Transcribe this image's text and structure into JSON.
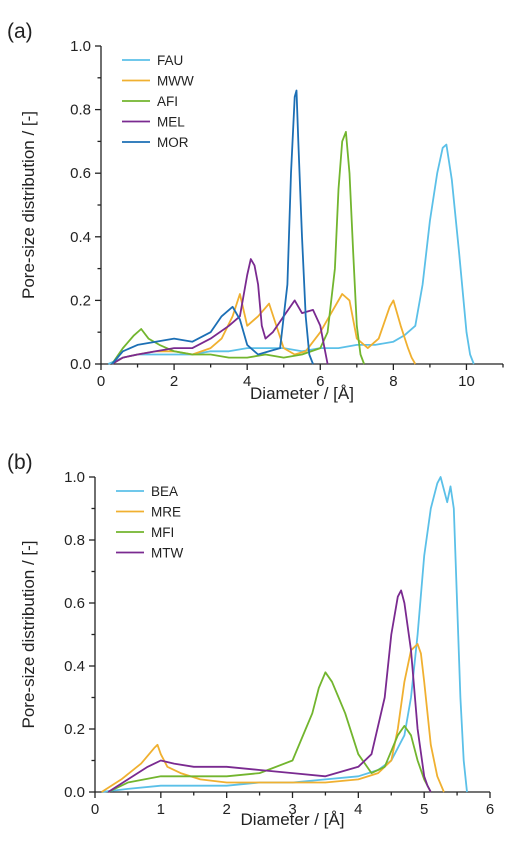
{
  "chart_data": [
    {
      "type": "line",
      "panel_label": "(a)",
      "xlabel": "Diameter / [Å]",
      "ylabel": "Pore-size distribution / [-]",
      "xlim": [
        0,
        11
      ],
      "ylim": [
        0,
        1.0
      ],
      "xticks": [
        0,
        2,
        4,
        6,
        8,
        10
      ],
      "yticks": [
        "0.0",
        "0.2",
        "0.4",
        "0.6",
        "0.8",
        "1.0"
      ],
      "legend_position": "top-left",
      "series": [
        {
          "name": "FAU",
          "color": "#5bc0e8",
          "x": [
            0.2,
            0.6,
            1.0,
            1.5,
            2.0,
            2.5,
            3.0,
            3.5,
            4.0,
            4.5,
            5.0,
            5.5,
            6.0,
            6.5,
            7.0,
            7.5,
            8.0,
            8.3,
            8.6,
            8.8,
            9.0,
            9.2,
            9.35,
            9.45,
            9.6,
            9.8,
            10.0,
            10.1,
            10.2
          ],
          "y": [
            0.0,
            0.02,
            0.03,
            0.03,
            0.03,
            0.03,
            0.04,
            0.04,
            0.05,
            0.05,
            0.05,
            0.04,
            0.05,
            0.05,
            0.06,
            0.06,
            0.07,
            0.09,
            0.12,
            0.25,
            0.45,
            0.6,
            0.68,
            0.69,
            0.58,
            0.35,
            0.1,
            0.03,
            0.0
          ]
        },
        {
          "name": "MWW",
          "color": "#f0b030",
          "x": [
            0.3,
            0.6,
            1.0,
            1.5,
            2.0,
            2.5,
            3.0,
            3.3,
            3.6,
            3.8,
            4.0,
            4.3,
            4.6,
            5.0,
            5.3,
            5.6,
            6.0,
            6.3,
            6.6,
            6.8,
            7.0,
            7.3,
            7.6,
            7.9,
            8.0,
            8.2,
            8.4,
            8.5,
            8.6
          ],
          "y": [
            0.0,
            0.02,
            0.03,
            0.04,
            0.04,
            0.03,
            0.05,
            0.08,
            0.15,
            0.22,
            0.12,
            0.15,
            0.19,
            0.05,
            0.03,
            0.04,
            0.1,
            0.16,
            0.22,
            0.2,
            0.08,
            0.05,
            0.08,
            0.18,
            0.2,
            0.12,
            0.05,
            0.02,
            0.0
          ]
        },
        {
          "name": "AFI",
          "color": "#72b52e",
          "x": [
            0.3,
            0.6,
            0.9,
            1.1,
            1.3,
            1.6,
            2.0,
            2.5,
            3.0,
            3.5,
            4.0,
            4.5,
            5.0,
            5.5,
            6.0,
            6.2,
            6.4,
            6.5,
            6.6,
            6.7,
            6.8,
            6.9,
            7.0,
            7.1,
            7.2
          ],
          "y": [
            0.0,
            0.05,
            0.09,
            0.11,
            0.08,
            0.06,
            0.04,
            0.03,
            0.03,
            0.02,
            0.02,
            0.03,
            0.02,
            0.03,
            0.05,
            0.1,
            0.3,
            0.55,
            0.7,
            0.73,
            0.6,
            0.35,
            0.12,
            0.03,
            0.0
          ]
        },
        {
          "name": "MEL",
          "color": "#7a2a90",
          "x": [
            0.3,
            0.6,
            1.0,
            1.5,
            2.0,
            2.5,
            3.0,
            3.5,
            3.8,
            4.0,
            4.1,
            4.2,
            4.3,
            4.4,
            4.5,
            4.7,
            5.0,
            5.3,
            5.5,
            5.8,
            6.0,
            6.1,
            6.2
          ],
          "y": [
            0.0,
            0.02,
            0.03,
            0.04,
            0.05,
            0.05,
            0.08,
            0.12,
            0.15,
            0.28,
            0.33,
            0.31,
            0.25,
            0.12,
            0.08,
            0.1,
            0.15,
            0.2,
            0.16,
            0.17,
            0.12,
            0.06,
            0.0
          ]
        },
        {
          "name": "MOR",
          "color": "#1c6fb5",
          "x": [
            0.3,
            0.6,
            1.0,
            1.5,
            2.0,
            2.5,
            3.0,
            3.3,
            3.6,
            3.8,
            4.0,
            4.3,
            4.6,
            4.9,
            5.1,
            5.2,
            5.3,
            5.35,
            5.4,
            5.5,
            5.6,
            5.7,
            5.8
          ],
          "y": [
            0.0,
            0.04,
            0.06,
            0.07,
            0.08,
            0.07,
            0.1,
            0.15,
            0.18,
            0.14,
            0.06,
            0.03,
            0.04,
            0.05,
            0.25,
            0.6,
            0.84,
            0.86,
            0.7,
            0.4,
            0.15,
            0.03,
            0.0
          ]
        }
      ]
    },
    {
      "type": "line",
      "panel_label": "(b)",
      "xlabel": "Diameter / [Å]",
      "ylabel": "Pore-size distribution / [-]",
      "xlim": [
        0,
        6
      ],
      "ylim": [
        0,
        1.0
      ],
      "xticks": [
        0,
        1,
        2,
        3,
        4,
        5,
        6
      ],
      "yticks": [
        "0.0",
        "0.2",
        "0.4",
        "0.6",
        "0.8",
        "1.0"
      ],
      "legend_position": "top-left",
      "series": [
        {
          "name": "BEA",
          "color": "#5bc0e8",
          "x": [
            0.1,
            0.5,
            1.0,
            1.5,
            2.0,
            2.5,
            3.0,
            3.5,
            4.0,
            4.3,
            4.5,
            4.7,
            4.8,
            4.9,
            5.0,
            5.1,
            5.2,
            5.25,
            5.3,
            5.35,
            5.4,
            5.45,
            5.5,
            5.55,
            5.6,
            5.65
          ],
          "y": [
            0.0,
            0.01,
            0.02,
            0.02,
            0.02,
            0.03,
            0.03,
            0.04,
            0.05,
            0.07,
            0.1,
            0.18,
            0.3,
            0.5,
            0.75,
            0.9,
            0.98,
            1.0,
            0.96,
            0.92,
            0.97,
            0.9,
            0.6,
            0.3,
            0.1,
            0.0
          ]
        },
        {
          "name": "MRE",
          "color": "#f0b030",
          "x": [
            0.1,
            0.4,
            0.7,
            0.9,
            0.95,
            1.0,
            1.1,
            1.3,
            1.6,
            2.0,
            2.5,
            3.0,
            3.5,
            4.0,
            4.3,
            4.5,
            4.6,
            4.7,
            4.8,
            4.9,
            4.95,
            5.0,
            5.1,
            5.2,
            5.3
          ],
          "y": [
            0.0,
            0.04,
            0.09,
            0.14,
            0.15,
            0.12,
            0.08,
            0.06,
            0.04,
            0.03,
            0.03,
            0.03,
            0.03,
            0.04,
            0.06,
            0.1,
            0.2,
            0.35,
            0.45,
            0.47,
            0.44,
            0.35,
            0.15,
            0.05,
            0.0
          ]
        },
        {
          "name": "MFI",
          "color": "#72b52e",
          "x": [
            0.2,
            0.5,
            1.0,
            1.5,
            2.0,
            2.5,
            3.0,
            3.2,
            3.3,
            3.4,
            3.5,
            3.6,
            3.7,
            3.8,
            4.0,
            4.2,
            4.4,
            4.6,
            4.7,
            4.8,
            4.9,
            5.0,
            5.1
          ],
          "y": [
            0.0,
            0.03,
            0.05,
            0.05,
            0.05,
            0.06,
            0.1,
            0.2,
            0.25,
            0.33,
            0.38,
            0.35,
            0.3,
            0.25,
            0.12,
            0.06,
            0.08,
            0.18,
            0.21,
            0.18,
            0.1,
            0.04,
            0.0
          ]
        },
        {
          "name": "MTW",
          "color": "#7a2a90",
          "x": [
            0.2,
            0.5,
            0.8,
            1.0,
            1.2,
            1.5,
            2.0,
            2.5,
            3.0,
            3.5,
            4.0,
            4.2,
            4.4,
            4.5,
            4.6,
            4.65,
            4.7,
            4.8,
            4.9,
            5.0,
            5.05,
            5.1
          ],
          "y": [
            0.0,
            0.04,
            0.08,
            0.1,
            0.09,
            0.08,
            0.08,
            0.07,
            0.06,
            0.05,
            0.08,
            0.12,
            0.3,
            0.5,
            0.62,
            0.64,
            0.6,
            0.45,
            0.2,
            0.05,
            0.02,
            0.0
          ]
        }
      ]
    }
  ]
}
